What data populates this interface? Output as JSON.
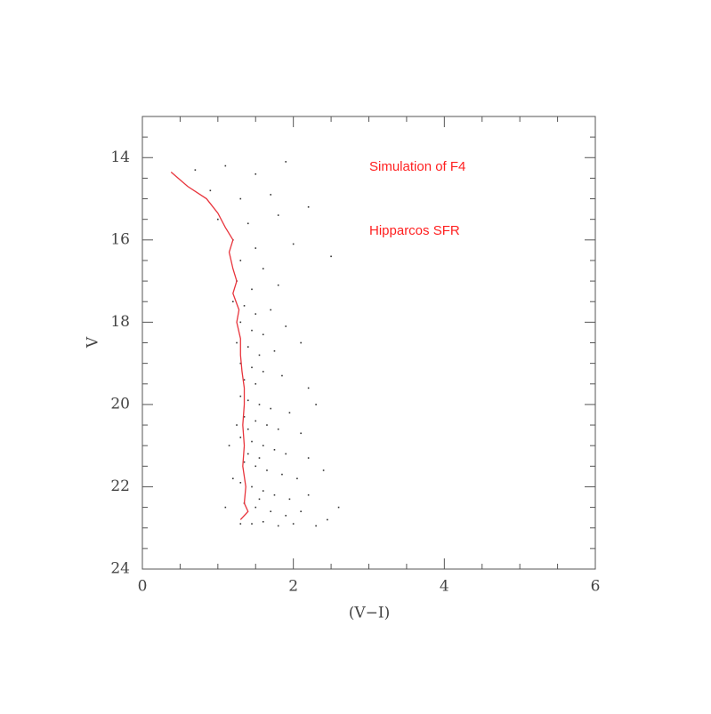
{
  "chart_data": {
    "type": "scatter",
    "xlabel": "(V−I)",
    "ylabel": "V",
    "annotations": [
      {
        "text": "Simulation of F4",
        "color": "#ff2020"
      },
      {
        "text": "Hipparcos SFR",
        "color": "#ff2020"
      }
    ],
    "xlim": [
      0,
      6
    ],
    "ylim": [
      24,
      13
    ],
    "xticks": [
      0,
      2,
      4,
      6
    ],
    "yticks": [
      14,
      16,
      18,
      20,
      22,
      24
    ],
    "xminorticks": [
      0.5,
      1,
      1.5,
      2.5,
      3,
      3.5,
      4.5,
      5,
      5.5
    ],
    "yminorticks": [
      13.5,
      14.5,
      15,
      15.5,
      16.5,
      17,
      17.5,
      18.5,
      19,
      19.5,
      20.5,
      21,
      21.5,
      22.5,
      23,
      23.5
    ],
    "points": {
      "color": "#333333",
      "x": [
        0.7,
        1.1,
        1.5,
        1.9,
        0.9,
        1.3,
        1.7,
        2.2,
        1.0,
        1.4,
        1.8,
        1.2,
        1.5,
        2.0,
        1.3,
        1.6,
        2.5,
        1.25,
        1.45,
        1.8,
        1.2,
        1.35,
        1.5,
        1.7,
        1.3,
        1.45,
        1.6,
        1.9,
        1.25,
        1.4,
        1.55,
        1.75,
        2.1,
        1.3,
        1.45,
        1.6,
        1.85,
        1.35,
        1.5,
        2.2,
        1.3,
        1.4,
        1.55,
        1.7,
        1.95,
        2.3,
        1.35,
        1.5,
        1.65,
        1.8,
        2.1,
        1.3,
        1.45,
        1.6,
        1.75,
        1.9,
        2.2,
        1.35,
        1.5,
        1.65,
        1.85,
        2.05,
        2.4,
        1.3,
        1.45,
        1.6,
        1.75,
        1.95,
        2.2,
        1.35,
        1.5,
        1.7,
        1.9,
        2.1,
        2.45,
        1.3,
        1.45,
        1.6,
        1.8,
        2.0,
        2.3,
        1.4,
        1.55,
        1.4,
        1.55,
        1.25,
        1.2,
        1.1,
        1.15,
        2.6
      ],
      "y": [
        14.3,
        14.2,
        14.4,
        14.1,
        14.8,
        15.0,
        14.9,
        15.2,
        15.5,
        15.6,
        15.4,
        16.0,
        16.2,
        16.1,
        16.5,
        16.7,
        16.4,
        17.0,
        17.2,
        17.1,
        17.5,
        17.6,
        17.8,
        17.7,
        18.0,
        18.2,
        18.3,
        18.1,
        18.5,
        18.6,
        18.8,
        18.7,
        18.5,
        19.0,
        19.1,
        19.2,
        19.3,
        19.4,
        19.5,
        19.6,
        19.8,
        19.9,
        20.0,
        20.1,
        20.2,
        20.0,
        20.3,
        20.4,
        20.5,
        20.6,
        20.7,
        20.8,
        20.9,
        21.0,
        21.1,
        21.2,
        21.3,
        21.4,
        21.5,
        21.6,
        21.7,
        21.8,
        21.6,
        21.9,
        22.0,
        22.1,
        22.2,
        22.3,
        22.2,
        22.4,
        22.5,
        22.6,
        22.7,
        22.6,
        22.8,
        22.9,
        22.9,
        22.85,
        22.95,
        22.9,
        22.95,
        21.2,
        21.3,
        20.6,
        22.3,
        20.5,
        21.8,
        22.5,
        21.0,
        22.5
      ]
    },
    "line": {
      "color": "#e8343c",
      "x": [
        0.38,
        0.6,
        0.85,
        1.0,
        1.1,
        1.2,
        1.15,
        1.2,
        1.25,
        1.2,
        1.28,
        1.25,
        1.3,
        1.3,
        1.32,
        1.35,
        1.35,
        1.33,
        1.35,
        1.33,
        1.37,
        1.35,
        1.4,
        1.3
      ],
      "y": [
        14.35,
        14.7,
        15.0,
        15.35,
        15.7,
        16.0,
        16.3,
        16.7,
        17.0,
        17.3,
        17.7,
        18.0,
        18.4,
        18.8,
        19.2,
        19.6,
        20.0,
        20.5,
        21.0,
        21.5,
        22.0,
        22.4,
        22.6,
        22.8
      ]
    }
  }
}
